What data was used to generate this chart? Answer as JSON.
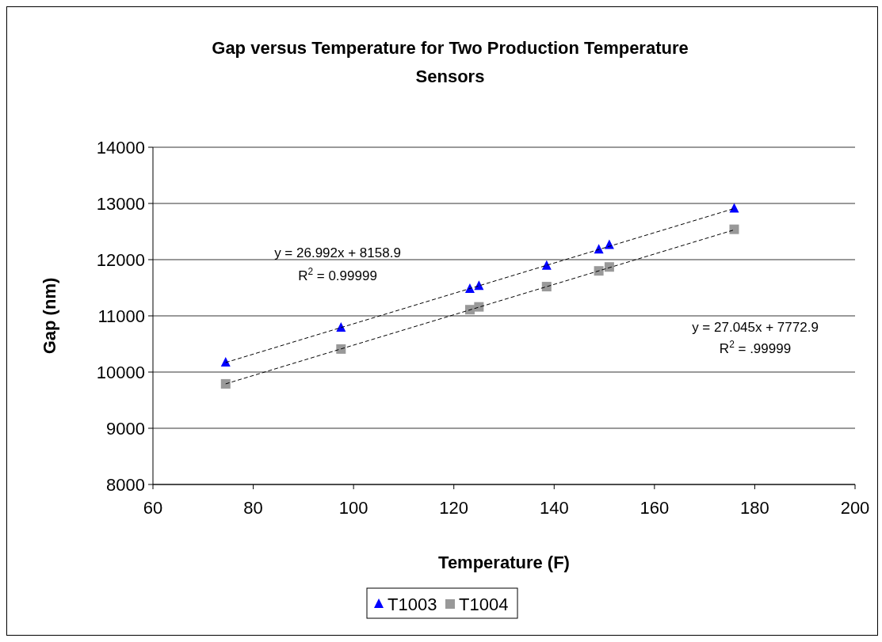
{
  "chart_data": {
    "type": "scatter",
    "title": "Gap versus Temperature for Two Production Temperature Sensors",
    "xlabel": "Temperature (F)",
    "ylabel": "Gap (nm)",
    "xlim": [
      60,
      200
    ],
    "xticks": [
      60,
      80,
      100,
      120,
      140,
      160,
      180,
      200
    ],
    "ylim": [
      8000,
      14000
    ],
    "yticks": [
      8000,
      9000,
      10000,
      11000,
      12000,
      13000,
      14000
    ],
    "grid": "y",
    "legend": "bottom",
    "series": [
      {
        "name": "T1003",
        "color": "#0000ff",
        "marker": "triangle",
        "x": [
          74.5,
          97.5,
          123.2,
          125,
          138.5,
          148.9,
          151,
          175.9
        ],
        "values": [
          10170,
          10790,
          11480,
          11530,
          11890,
          12180,
          12260,
          12910
        ]
      },
      {
        "name": "T1004",
        "color": "#999999",
        "marker": "square",
        "x": [
          74.5,
          97.5,
          123.2,
          125,
          138.5,
          148.9,
          151,
          175.9
        ],
        "values": [
          9790,
          10410,
          11110,
          11160,
          11520,
          11800,
          11870,
          12540
        ]
      },
      {
        "type": "line",
        "color": "#000000",
        "line_style": "dashed",
        "marker": "none",
        "x": [
          74.5,
          175.9
        ],
        "values": [
          10170,
          12910
        ]
      },
      {
        "type": "line",
        "color": "#000000",
        "line_style": "dashed",
        "marker": "none",
        "x": [
          74.5,
          175.9
        ],
        "values": [
          9790,
          12530
        ]
      }
    ],
    "annotations": [
      "y = 26.992x + 8158.9",
      "R$^{2}$ = 0.99999",
      "y = 27.045x + 7772.9",
      "R$^{2}$ = .99999"
    ]
  }
}
